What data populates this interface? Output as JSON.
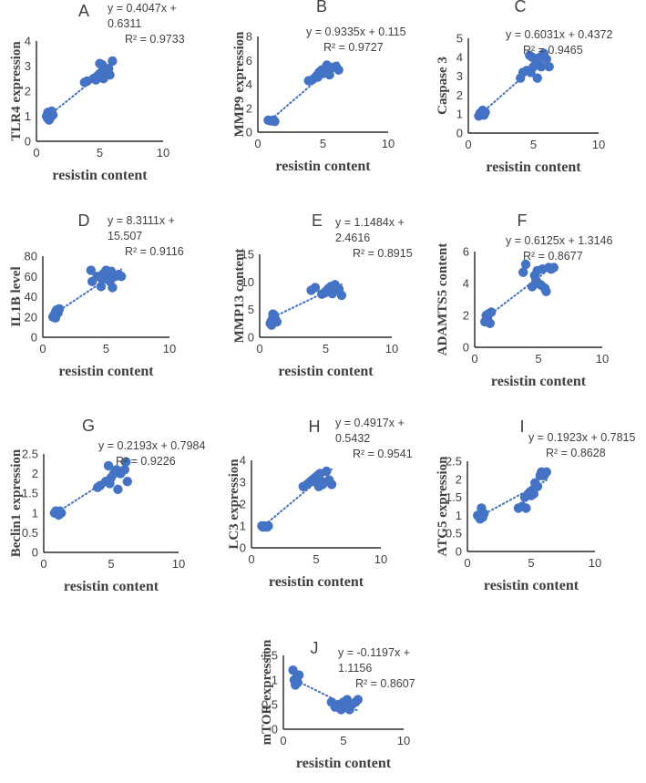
{
  "figure": {
    "marker_color": "#4472C4",
    "axis_color": "#000000",
    "text_color": "#404040"
  },
  "chart_data": [
    {
      "type": "scatter",
      "panel": "A",
      "xlabel": "resistin content",
      "ylabel": "TLR4 expression",
      "xlim": [
        0,
        10
      ],
      "ylim": [
        0,
        4
      ],
      "xticks": [
        0,
        5,
        10
      ],
      "yticks": [
        0,
        1,
        2,
        3,
        4
      ],
      "equation_lines": [
        "y = 0.4047x +",
        "0.6311"
      ],
      "r2": "R² = 0.9733",
      "trendline": {
        "slope": 0.4047,
        "intercept": 0.6311,
        "x": [
          0.8,
          6.2
        ]
      },
      "points": [
        [
          0.8,
          1.0
        ],
        [
          0.9,
          0.9
        ],
        [
          1.0,
          1.1
        ],
        [
          1.1,
          0.95
        ],
        [
          1.2,
          1.2
        ],
        [
          0.9,
          1.15
        ],
        [
          1.3,
          1.05
        ],
        [
          1.0,
          0.85
        ],
        [
          3.8,
          2.35
        ],
        [
          4.0,
          2.4
        ],
        [
          4.5,
          2.5
        ],
        [
          4.8,
          2.6
        ],
        [
          5.0,
          2.7
        ],
        [
          5.2,
          2.8
        ],
        [
          5.0,
          3.1
        ],
        [
          5.5,
          2.75
        ],
        [
          5.3,
          2.5
        ],
        [
          5.7,
          2.9
        ],
        [
          6.0,
          3.2
        ],
        [
          4.7,
          2.45
        ],
        [
          5.2,
          3.05
        ],
        [
          5.8,
          2.65
        ]
      ]
    },
    {
      "type": "scatter",
      "panel": "B",
      "xlabel": "resistin content",
      "ylabel": "MMP9 expression",
      "xlim": [
        0,
        10
      ],
      "ylim": [
        0,
        8
      ],
      "xticks": [
        0,
        5,
        10
      ],
      "yticks": [
        0,
        2,
        4,
        6,
        8
      ],
      "equation_lines": [
        "y = 0.9335x + 0.115"
      ],
      "r2": "R² = 0.9727",
      "trendline": {
        "slope": 0.9335,
        "intercept": 0.115,
        "x": [
          0.8,
          6.2
        ]
      },
      "points": [
        [
          0.8,
          1.0
        ],
        [
          1.0,
          0.95
        ],
        [
          1.2,
          1.0
        ],
        [
          1.3,
          0.9
        ],
        [
          3.9,
          4.3
        ],
        [
          4.2,
          4.4
        ],
        [
          4.5,
          4.7
        ],
        [
          4.7,
          5.0
        ],
        [
          4.9,
          5.2
        ],
        [
          5.0,
          4.9
        ],
        [
          5.2,
          5.3
        ],
        [
          5.4,
          5.1
        ],
        [
          5.5,
          4.8
        ],
        [
          5.7,
          5.4
        ],
        [
          6.0,
          5.5
        ],
        [
          6.2,
          5.2
        ],
        [
          4.6,
          4.6
        ],
        [
          5.3,
          5.6
        ]
      ]
    },
    {
      "type": "scatter",
      "panel": "C",
      "xlabel": "resistin content",
      "ylabel": "Caspase 3",
      "xlim": [
        0,
        10
      ],
      "ylim": [
        0,
        5
      ],
      "xticks": [
        0,
        5,
        10
      ],
      "yticks": [
        0,
        1,
        2,
        3,
        4,
        5
      ],
      "equation_lines": [
        "y = 0.6031x + 0.4372"
      ],
      "r2": "R² = 0.9465",
      "trendline": {
        "slope": 0.6031,
        "intercept": 0.4372,
        "x": [
          0.8,
          6.2
        ]
      },
      "points": [
        [
          0.8,
          0.9
        ],
        [
          1.0,
          1.0
        ],
        [
          1.1,
          1.2
        ],
        [
          1.3,
          1.1
        ],
        [
          0.9,
          1.05
        ],
        [
          1.2,
          0.95
        ],
        [
          4.0,
          2.9
        ],
        [
          4.2,
          3.2
        ],
        [
          4.5,
          3.3
        ],
        [
          4.7,
          4.1
        ],
        [
          4.9,
          4.0
        ],
        [
          5.0,
          3.5
        ],
        [
          5.2,
          3.8
        ],
        [
          5.4,
          3.6
        ],
        [
          5.6,
          3.5
        ],
        [
          5.8,
          4.2
        ],
        [
          6.0,
          3.9
        ],
        [
          6.2,
          3.5
        ],
        [
          5.3,
          2.9
        ],
        [
          5.5,
          4.0
        ],
        [
          4.8,
          3.2
        ]
      ]
    },
    {
      "type": "scatter",
      "panel": "D",
      "xlabel": "resistin content",
      "ylabel": "IL1B level",
      "xlim": [
        0,
        10
      ],
      "ylim": [
        0,
        80
      ],
      "xticks": [
        0,
        5,
        10
      ],
      "yticks": [
        0,
        20,
        40,
        60,
        80
      ],
      "equation_lines": [
        "y = 8.3111x +",
        "15.507"
      ],
      "r2": "R² = 0.9116",
      "trendline": {
        "slope": 8.3111,
        "intercept": 15.507,
        "x": [
          0.8,
          6.2
        ]
      },
      "points": [
        [
          0.8,
          20
        ],
        [
          0.9,
          22
        ],
        [
          1.0,
          25
        ],
        [
          1.1,
          27
        ],
        [
          1.2,
          24
        ],
        [
          1.3,
          28
        ],
        [
          1.0,
          19
        ],
        [
          3.8,
          66
        ],
        [
          3.9,
          55
        ],
        [
          4.3,
          60
        ],
        [
          4.6,
          50
        ],
        [
          4.8,
          63
        ],
        [
          5.0,
          58
        ],
        [
          5.0,
          66
        ],
        [
          5.2,
          62
        ],
        [
          5.4,
          65
        ],
        [
          5.5,
          49
        ],
        [
          5.7,
          60
        ],
        [
          6.0,
          62
        ],
        [
          6.2,
          60
        ],
        [
          4.7,
          57
        ],
        [
          5.3,
          55
        ]
      ]
    },
    {
      "type": "scatter",
      "panel": "E",
      "xlabel": "resistin content",
      "ylabel": "MMP13 content",
      "xlim": [
        0,
        10
      ],
      "ylim": [
        0,
        15
      ],
      "xticks": [
        0,
        5,
        10
      ],
      "yticks": [
        0,
        5,
        10,
        15
      ],
      "equation_lines": [
        "y = 1.1484x +",
        "2.4616"
      ],
      "r2": "R² = 0.8915",
      "trendline": {
        "slope": 1.1484,
        "intercept": 2.4616,
        "x": [
          0.8,
          6.2
        ]
      },
      "points": [
        [
          0.8,
          2.5
        ],
        [
          0.9,
          3.0
        ],
        [
          1.0,
          3.5
        ],
        [
          1.1,
          4.0
        ],
        [
          1.2,
          3.2
        ],
        [
          1.3,
          2.8
        ],
        [
          1.0,
          4.2
        ],
        [
          0.9,
          2.2
        ],
        [
          3.9,
          8.5
        ],
        [
          4.2,
          9.0
        ],
        [
          4.7,
          7.8
        ],
        [
          4.9,
          8.0
        ],
        [
          5.0,
          8.3
        ],
        [
          5.2,
          8.8
        ],
        [
          5.4,
          9.2
        ],
        [
          5.5,
          7.9
        ],
        [
          5.7,
          9.5
        ],
        [
          6.0,
          8.7
        ],
        [
          6.2,
          7.6
        ],
        [
          5.3,
          8.2
        ]
      ]
    },
    {
      "type": "scatter",
      "panel": "F",
      "xlabel": "resistin content",
      "ylabel": "ADAMTS5 content",
      "xlim": [
        0,
        10
      ],
      "ylim": [
        0,
        6
      ],
      "xticks": [
        0,
        5,
        10
      ],
      "yticks": [
        0,
        2,
        4,
        6
      ],
      "equation_lines": [
        "y = 0.6125x + 1.3146"
      ],
      "r2": "R² = 0.8677",
      "trendline": {
        "slope": 0.6125,
        "intercept": 1.3146,
        "x": [
          0.8,
          6.2
        ]
      },
      "points": [
        [
          0.8,
          1.6
        ],
        [
          1.0,
          1.8
        ],
        [
          1.1,
          2.1
        ],
        [
          1.2,
          1.5
        ],
        [
          1.3,
          2.2
        ],
        [
          0.9,
          2.0
        ],
        [
          3.8,
          4.7
        ],
        [
          4.0,
          5.2
        ],
        [
          4.5,
          3.8
        ],
        [
          4.7,
          4.5
        ],
        [
          4.9,
          4.8
        ],
        [
          5.0,
          4.0
        ],
        [
          5.2,
          3.9
        ],
        [
          5.3,
          4.9
        ],
        [
          5.5,
          3.7
        ],
        [
          5.6,
          3.5
        ],
        [
          5.8,
          5.0
        ],
        [
          6.0,
          4.9
        ],
        [
          6.2,
          5.0
        ],
        [
          4.8,
          4.2
        ]
      ]
    },
    {
      "type": "scatter",
      "panel": "G",
      "xlabel": "resistin content",
      "ylabel": "Beclin1 expression",
      "xlim": [
        0,
        10
      ],
      "ylim": [
        0,
        2.5
      ],
      "xticks": [
        0,
        5,
        10
      ],
      "yticks": [
        0,
        0.5,
        1,
        1.5,
        2,
        2.5
      ],
      "equation_lines": [
        "y = 0.2193x + 0.7984"
      ],
      "r2": "R² = 0.9226",
      "trendline": {
        "slope": 0.2193,
        "intercept": 0.7984,
        "x": [
          0.8,
          6.2
        ]
      },
      "points": [
        [
          0.8,
          1.0
        ],
        [
          0.9,
          1.05
        ],
        [
          1.0,
          1.0
        ],
        [
          1.1,
          0.95
        ],
        [
          1.2,
          1.05
        ],
        [
          1.3,
          1.0
        ],
        [
          4.0,
          1.65
        ],
        [
          4.2,
          1.7
        ],
        [
          4.6,
          1.8
        ],
        [
          4.8,
          2.2
        ],
        [
          5.0,
          1.9
        ],
        [
          5.2,
          2.0
        ],
        [
          5.4,
          2.1
        ],
        [
          5.5,
          1.6
        ],
        [
          5.7,
          2.0
        ],
        [
          6.0,
          2.1
        ],
        [
          6.2,
          1.8
        ],
        [
          6.1,
          2.3
        ],
        [
          4.9,
          1.75
        ]
      ]
    },
    {
      "type": "scatter",
      "panel": "H",
      "xlabel": "resistin content",
      "ylabel": "LC3 expression",
      "xlim": [
        0,
        10
      ],
      "ylim": [
        0,
        4
      ],
      "xticks": [
        0,
        5,
        10
      ],
      "yticks": [
        0,
        1,
        2,
        3,
        4
      ],
      "equation_lines": [
        "y = 0.4917x +",
        "0.5432"
      ],
      "r2": "R² = 0.9541",
      "trendline": {
        "slope": 0.4917,
        "intercept": 0.5432,
        "x": [
          0.8,
          6.2
        ]
      },
      "points": [
        [
          0.8,
          1.0
        ],
        [
          0.9,
          0.95
        ],
        [
          1.0,
          1.0
        ],
        [
          1.2,
          0.95
        ],
        [
          1.3,
          1.0
        ],
        [
          4.0,
          2.8
        ],
        [
          4.3,
          2.9
        ],
        [
          4.5,
          3.0
        ],
        [
          4.7,
          3.1
        ],
        [
          4.9,
          3.2
        ],
        [
          5.0,
          3.0
        ],
        [
          5.1,
          3.3
        ],
        [
          5.3,
          3.4
        ],
        [
          5.5,
          2.9
        ],
        [
          5.6,
          3.0
        ],
        [
          5.8,
          3.5
        ],
        [
          6.0,
          3.1
        ],
        [
          6.2,
          2.9
        ],
        [
          5.2,
          2.8
        ]
      ]
    },
    {
      "type": "scatter",
      "panel": "I",
      "xlabel": "resistin content",
      "ylabel": "ATG5 expression",
      "xlim": [
        0,
        10
      ],
      "ylim": [
        0,
        2.5
      ],
      "xticks": [
        0,
        5,
        10
      ],
      "yticks": [
        0,
        0.5,
        1,
        1.5,
        2,
        2.5
      ],
      "equation_lines": [
        "y = 0.1923x + 0.7815"
      ],
      "r2": "R² = 0.8628",
      "trendline": {
        "slope": 0.1923,
        "intercept": 0.7815,
        "x": [
          0.8,
          6.2
        ]
      },
      "points": [
        [
          0.8,
          1.0
        ],
        [
          1.0,
          0.9
        ],
        [
          1.1,
          1.2
        ],
        [
          1.2,
          0.95
        ],
        [
          1.3,
          1.05
        ],
        [
          4.0,
          1.2
        ],
        [
          4.3,
          1.25
        ],
        [
          4.5,
          1.5
        ],
        [
          4.6,
          1.2
        ],
        [
          4.8,
          1.6
        ],
        [
          5.0,
          1.55
        ],
        [
          5.1,
          1.7
        ],
        [
          5.2,
          1.6
        ],
        [
          5.3,
          1.9
        ],
        [
          5.5,
          1.8
        ],
        [
          5.7,
          2.1
        ],
        [
          5.8,
          2.2
        ],
        [
          6.0,
          2.1
        ],
        [
          6.2,
          2.2
        ],
        [
          4.9,
          1.65
        ]
      ]
    },
    {
      "type": "scatter",
      "panel": "J",
      "xlabel": "resistin content",
      "ylabel": "mTOR expression",
      "xlim": [
        0,
        10
      ],
      "ylim": [
        0,
        1.5
      ],
      "xticks": [
        0,
        5,
        10
      ],
      "yticks": [
        0,
        0.5,
        1,
        1.5
      ],
      "equation_lines": [
        "y = -0.1197x +",
        "1.1156"
      ],
      "r2": "R² = 0.8607",
      "trendline": {
        "slope": -0.1197,
        "intercept": 1.1156,
        "x": [
          0.8,
          6.2
        ]
      },
      "points": [
        [
          0.8,
          1.2
        ],
        [
          0.9,
          1.0
        ],
        [
          1.0,
          0.9
        ],
        [
          1.1,
          1.05
        ],
        [
          1.2,
          0.95
        ],
        [
          1.3,
          1.1
        ],
        [
          1.0,
          1.0
        ],
        [
          4.0,
          0.55
        ],
        [
          4.3,
          0.45
        ],
        [
          4.6,
          0.5
        ],
        [
          4.8,
          0.4
        ],
        [
          5.0,
          0.55
        ],
        [
          5.1,
          0.45
        ],
        [
          5.3,
          0.6
        ],
        [
          5.5,
          0.4
        ],
        [
          5.7,
          0.5
        ],
        [
          6.0,
          0.55
        ],
        [
          6.2,
          0.6
        ],
        [
          5.2,
          0.5
        ],
        [
          4.9,
          0.45
        ]
      ]
    }
  ]
}
